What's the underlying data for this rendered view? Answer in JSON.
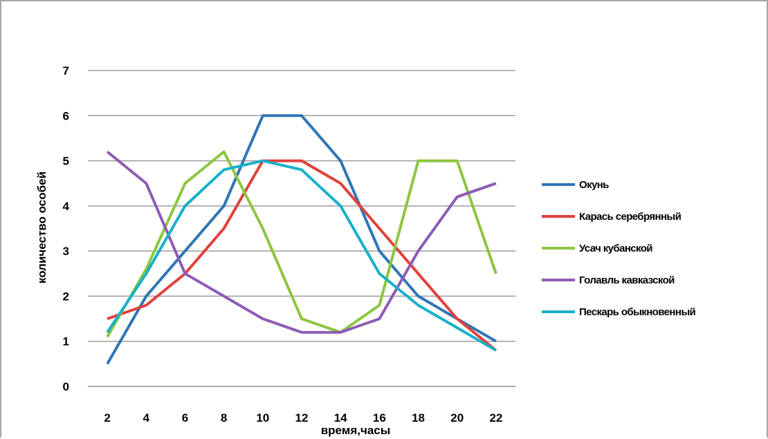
{
  "chart_data": {
    "type": "line",
    "title": "",
    "xlabel": "время,часы",
    "ylabel": "количество особей",
    "x": [
      2,
      4,
      6,
      8,
      10,
      12,
      14,
      16,
      18,
      20,
      22
    ],
    "ylim": [
      0,
      7
    ],
    "yticks": [
      0,
      1,
      2,
      3,
      4,
      5,
      6,
      7
    ],
    "grid": true,
    "legend_position": "right",
    "series": [
      {
        "name": "Окунь",
        "color": "#2e75b6",
        "values": [
          0.5,
          2.0,
          3.0,
          4.0,
          6.0,
          6.0,
          5.0,
          3.0,
          2.0,
          1.5,
          1.0
        ]
      },
      {
        "name": "Карась серебрянный",
        "color": "#e0413b",
        "values": [
          1.5,
          1.8,
          2.5,
          3.5,
          5.0,
          5.0,
          4.5,
          3.5,
          2.5,
          1.5,
          0.8
        ]
      },
      {
        "name": "Усач кубанской",
        "color": "#8cc63f",
        "values": [
          1.1,
          2.6,
          4.5,
          5.2,
          3.5,
          1.5,
          1.2,
          1.8,
          5.0,
          5.0,
          2.5
        ]
      },
      {
        "name": "Голавль кавказской",
        "color": "#8e5bb5",
        "values": [
          5.2,
          4.5,
          2.5,
          2.0,
          1.5,
          1.2,
          1.2,
          1.5,
          3.0,
          4.2,
          4.5
        ]
      },
      {
        "name": "Пескарь обыкновенный",
        "color": "#17b1c8",
        "values": [
          1.2,
          2.5,
          4.0,
          4.8,
          5.0,
          4.8,
          4.0,
          2.5,
          1.8,
          1.3,
          0.8
        ]
      }
    ]
  }
}
